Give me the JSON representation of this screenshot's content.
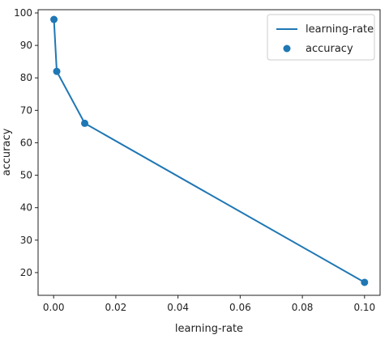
{
  "chart_data": {
    "type": "line",
    "x": [
      0.0001,
      0.001,
      0.01,
      0.1
    ],
    "series": [
      {
        "name": "learning-rate",
        "kind": "line",
        "values": [
          98,
          82,
          66,
          17
        ]
      },
      {
        "name": "accuracy",
        "kind": "scatter",
        "values": [
          98,
          82,
          66,
          17
        ]
      }
    ],
    "xlabel": "learning-rate",
    "ylabel": "accuracy",
    "xlim": [
      -0.005,
      0.105
    ],
    "ylim": [
      13,
      101
    ],
    "xticks": [
      "0.00",
      "0.02",
      "0.04",
      "0.06",
      "0.08",
      "0.10"
    ],
    "xtick_values": [
      0,
      0.02,
      0.04,
      0.06,
      0.08,
      0.1
    ],
    "yticks": [
      "20",
      "30",
      "40",
      "50",
      "60",
      "70",
      "80",
      "90",
      "100"
    ],
    "ytick_values": [
      20,
      30,
      40,
      50,
      60,
      70,
      80,
      90,
      100
    ],
    "legend_position": "top-right",
    "grid": false,
    "colors": {
      "series": "#1f77b4",
      "axis": "#222222"
    }
  }
}
